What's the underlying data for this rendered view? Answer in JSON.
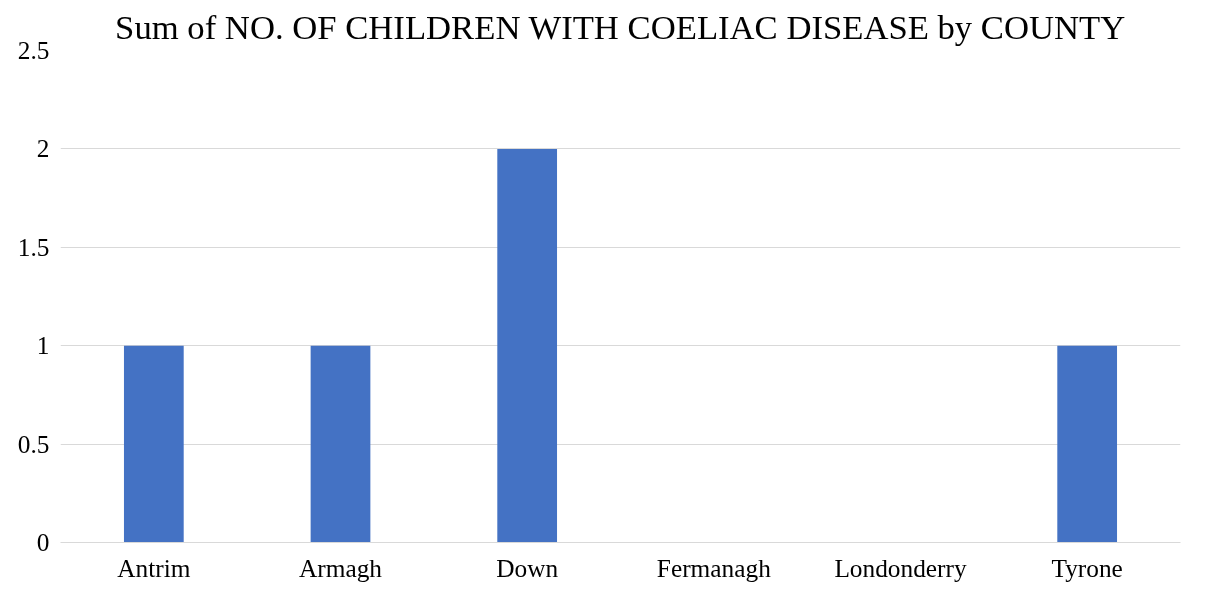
{
  "chart_data": {
    "type": "bar",
    "title": "Sum of NO. OF CHILDREN WITH COELIAC DISEASE by COUNTY",
    "categories": [
      "Antrim",
      "Armagh",
      "Down",
      "Fermanagh",
      "Londonderry",
      "Tyrone"
    ],
    "values": [
      1,
      1,
      2,
      0,
      0,
      1
    ],
    "color": "#4472c4",
    "ylim": [
      0,
      2.5
    ],
    "yticks": [
      0,
      0.5,
      1,
      1.5,
      2,
      2.5
    ],
    "grid": "y"
  }
}
